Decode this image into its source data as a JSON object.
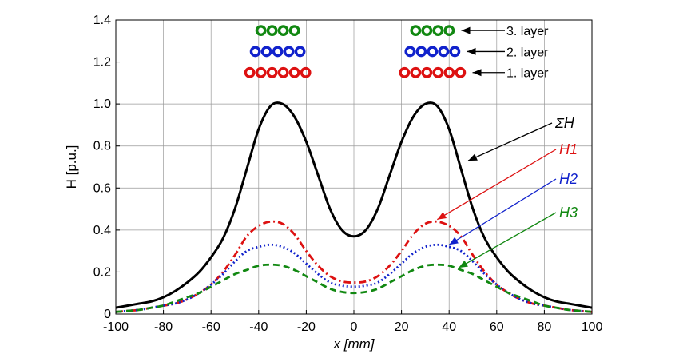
{
  "chart_data": {
    "type": "line",
    "title": "",
    "xlabel": "x [mm]",
    "ylabel": "H [p.u.]",
    "xlim": [
      -100,
      100
    ],
    "ylim": [
      0,
      1.4
    ],
    "grid": true,
    "x_ticks": [
      "-100",
      "-80",
      "-60",
      "-40",
      "-20",
      "0",
      "20",
      "40",
      "60",
      "80",
      "100"
    ],
    "y_ticks": [
      "0",
      "0.2",
      "0.4",
      "0.6",
      "0.8",
      "1.0",
      "1.2",
      "1.4"
    ],
    "x": [
      -100,
      -95,
      -90,
      -85,
      -80,
      -75,
      -70,
      -65,
      -60,
      -55,
      -50,
      -45,
      -40,
      -35,
      -30,
      -25,
      -20,
      -15,
      -10,
      -5,
      0,
      5,
      10,
      15,
      20,
      25,
      30,
      35,
      40,
      45,
      50,
      55,
      60,
      65,
      70,
      75,
      80,
      85,
      90,
      95,
      100
    ],
    "series": [
      {
        "name": "ΣH",
        "color": "#000000",
        "dash": "solid",
        "values": [
          0.03,
          0.04,
          0.05,
          0.06,
          0.08,
          0.11,
          0.15,
          0.2,
          0.27,
          0.36,
          0.5,
          0.69,
          0.88,
          0.99,
          1.0,
          0.94,
          0.82,
          0.66,
          0.5,
          0.4,
          0.37,
          0.4,
          0.5,
          0.66,
          0.82,
          0.94,
          1.0,
          0.99,
          0.88,
          0.69,
          0.5,
          0.36,
          0.27,
          0.2,
          0.15,
          0.11,
          0.08,
          0.06,
          0.05,
          0.04,
          0.03
        ]
      },
      {
        "name": "H1",
        "color": "#dd1111",
        "dash": "dashdot",
        "values": [
          0.01,
          0.015,
          0.02,
          0.03,
          0.04,
          0.05,
          0.07,
          0.1,
          0.14,
          0.2,
          0.28,
          0.37,
          0.42,
          0.44,
          0.43,
          0.38,
          0.3,
          0.23,
          0.18,
          0.155,
          0.15,
          0.155,
          0.18,
          0.23,
          0.3,
          0.38,
          0.43,
          0.44,
          0.42,
          0.37,
          0.28,
          0.2,
          0.14,
          0.1,
          0.07,
          0.05,
          0.04,
          0.03,
          0.02,
          0.015,
          0.01
        ]
      },
      {
        "name": "H2",
        "color": "#1122cc",
        "dash": "dot",
        "values": [
          0.01,
          0.015,
          0.02,
          0.03,
          0.04,
          0.05,
          0.07,
          0.1,
          0.14,
          0.19,
          0.25,
          0.3,
          0.32,
          0.33,
          0.32,
          0.29,
          0.24,
          0.19,
          0.15,
          0.135,
          0.13,
          0.135,
          0.15,
          0.19,
          0.24,
          0.29,
          0.32,
          0.33,
          0.32,
          0.3,
          0.25,
          0.19,
          0.14,
          0.1,
          0.07,
          0.05,
          0.04,
          0.03,
          0.02,
          0.015,
          0.01
        ]
      },
      {
        "name": "H3",
        "color": "#118811",
        "dash": "dash",
        "values": [
          0.01,
          0.015,
          0.02,
          0.03,
          0.04,
          0.06,
          0.08,
          0.1,
          0.13,
          0.16,
          0.19,
          0.21,
          0.23,
          0.235,
          0.23,
          0.21,
          0.18,
          0.15,
          0.12,
          0.105,
          0.1,
          0.105,
          0.12,
          0.15,
          0.18,
          0.21,
          0.23,
          0.235,
          0.23,
          0.21,
          0.19,
          0.16,
          0.13,
          0.1,
          0.08,
          0.06,
          0.04,
          0.03,
          0.02,
          0.015,
          0.01
        ]
      }
    ],
    "curve_labels": [
      {
        "text": "ΣH",
        "series": 0,
        "at_x": 48,
        "at_y": 0.73
      },
      {
        "text": "H1",
        "series": 1,
        "at_x": 35,
        "at_y": 0.45
      },
      {
        "text": "H2",
        "series": 2,
        "at_x": 40,
        "at_y": 0.33
      },
      {
        "text": "H3",
        "series": 3,
        "at_x": 44,
        "at_y": 0.22
      }
    ],
    "layers": [
      {
        "label": "3. layer",
        "color": "#118811",
        "count": 4,
        "y": 1.35
      },
      {
        "label": "2. layer",
        "color": "#1122cc",
        "count": 5,
        "y": 1.25
      },
      {
        "label": "1. layer",
        "color": "#dd1111",
        "count": 6,
        "y": 1.15
      }
    ],
    "layer_centers_mm": [
      -32,
      33
    ]
  }
}
